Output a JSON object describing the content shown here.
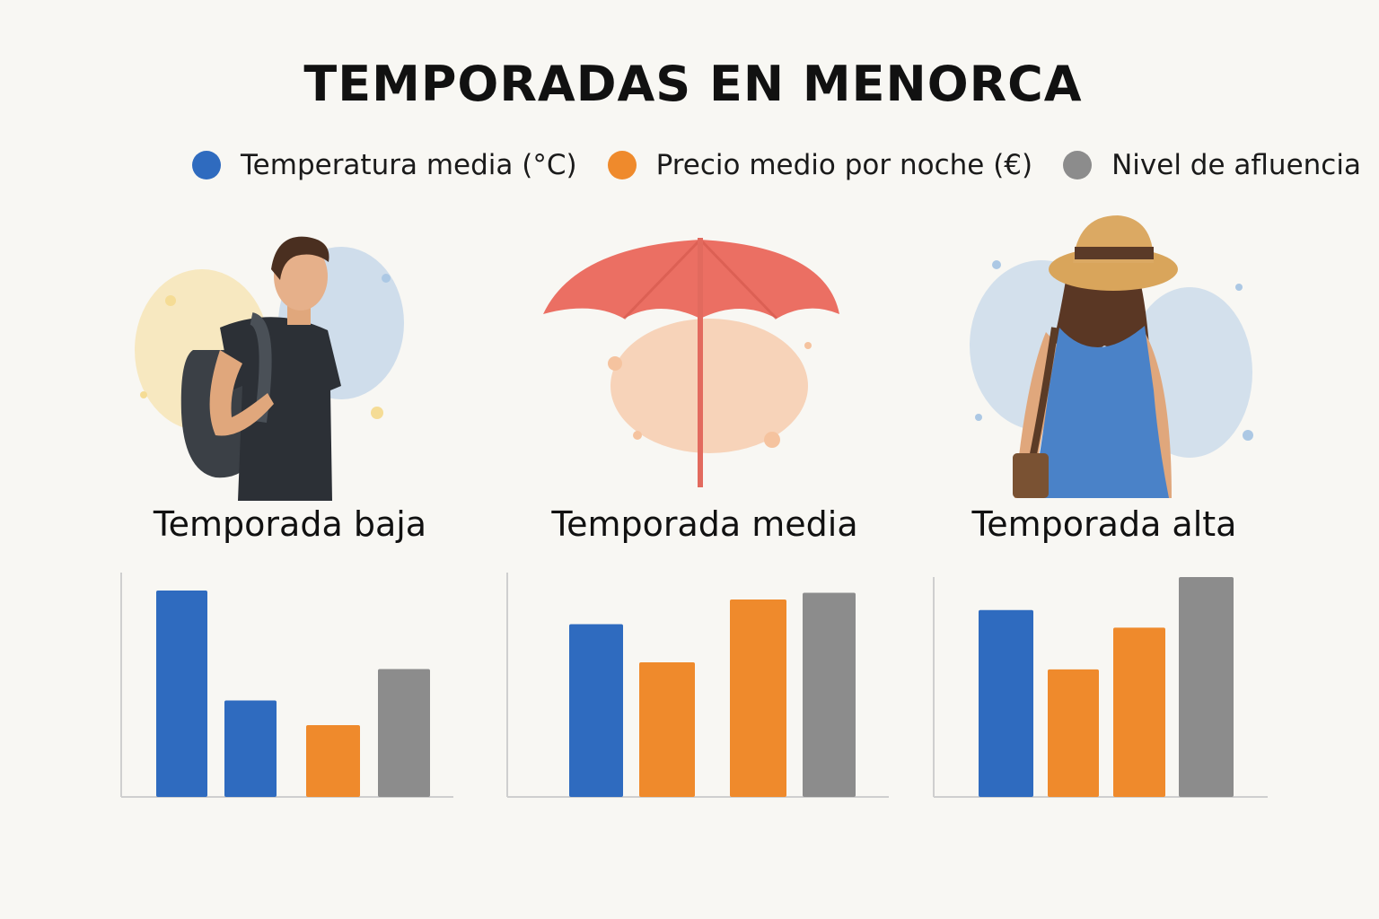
{
  "title": "TEMPORADAS EN MENORCA",
  "legend": [
    {
      "label": "Temperatura media (°C)",
      "color": "#2f6bbf"
    },
    {
      "label": "Precio medio por noche (€)",
      "color": "#ef8a2c"
    },
    {
      "label": "Nivel de afluencia",
      "color": "#8c8c8c"
    }
  ],
  "panels": [
    {
      "label": "Temporada baja",
      "illustration": "backpacker-man"
    },
    {
      "label": "Temporada media",
      "illustration": "beach-umbrella"
    },
    {
      "label": "Temporada alta",
      "illustration": "woman-sun-hat"
    }
  ],
  "chart_data": [
    {
      "type": "bar",
      "title": "Temporada baja",
      "ylim": [
        0,
        100
      ],
      "bars": [
        {
          "series": "Temperatura media (°C)",
          "value": 92
        },
        {
          "series": "Temperatura media (°C)",
          "value": 43
        },
        {
          "series": "Precio medio por noche (€)",
          "value": 32
        },
        {
          "series": "Nivel de afluencia",
          "value": 57
        }
      ]
    },
    {
      "type": "bar",
      "title": "Temporada media",
      "ylim": [
        0,
        100
      ],
      "bars": [
        {
          "series": "Temperatura media (°C)",
          "value": 77
        },
        {
          "series": "Precio medio por noche (€)",
          "value": 60
        },
        {
          "series": "Precio medio por noche (€)",
          "value": 88
        },
        {
          "series": "Nivel de afluencia",
          "value": 91
        }
      ]
    },
    {
      "type": "bar",
      "title": "Temporada alta",
      "ylim": [
        0,
        100
      ],
      "bars": [
        {
          "series": "Temperatura media (°C)",
          "value": 85
        },
        {
          "series": "Precio medio por noche (€)",
          "value": 58
        },
        {
          "series": "Precio medio por noche (€)",
          "value": 77
        },
        {
          "series": "Nivel de afluencia",
          "value": 100
        }
      ]
    }
  ]
}
